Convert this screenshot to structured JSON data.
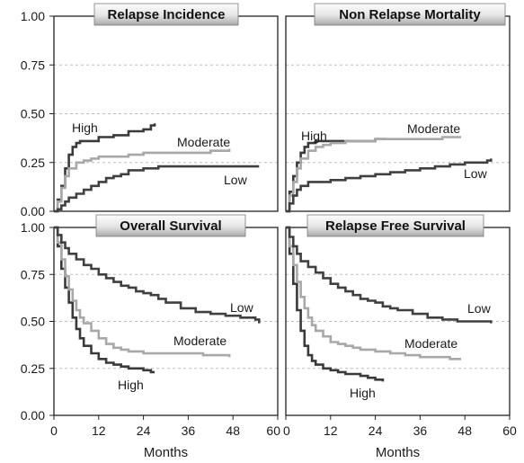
{
  "chart_data": [
    {
      "type": "line",
      "title": "Relapse Incidence",
      "xlabel": "",
      "ylabel": "",
      "xlim": [
        0,
        60
      ],
      "ylim": [
        0,
        1
      ],
      "xticks": [],
      "yticks": [
        "0.00",
        "0.25",
        "0.50",
        "0.75",
        "1.00"
      ],
      "grid": "horizontal dashed",
      "series": [
        {
          "name": "High",
          "color": "#3a3a3a",
          "x": [
            0,
            1,
            2,
            3,
            4,
            5,
            6,
            7,
            8,
            12,
            16,
            20,
            24,
            26,
            27
          ],
          "y": [
            0,
            0.06,
            0.13,
            0.22,
            0.29,
            0.33,
            0.35,
            0.36,
            0.36,
            0.38,
            0.39,
            0.41,
            0.42,
            0.44,
            0.45
          ]
        },
        {
          "name": "Moderate",
          "color": "#a8a8a8",
          "x": [
            0,
            1,
            2,
            3,
            4,
            6,
            8,
            10,
            12,
            16,
            20,
            24,
            30,
            36,
            42,
            47
          ],
          "y": [
            0,
            0.05,
            0.12,
            0.18,
            0.22,
            0.25,
            0.26,
            0.27,
            0.28,
            0.28,
            0.29,
            0.3,
            0.3,
            0.3,
            0.31,
            0.32
          ]
        },
        {
          "name": "Low",
          "color": "#404040",
          "x": [
            0,
            1,
            2,
            3,
            4,
            6,
            8,
            10,
            12,
            14,
            16,
            18,
            20,
            24,
            28,
            32,
            40,
            48,
            55
          ],
          "y": [
            0,
            0.01,
            0.03,
            0.05,
            0.07,
            0.09,
            0.11,
            0.13,
            0.15,
            0.17,
            0.18,
            0.19,
            0.21,
            0.22,
            0.23,
            0.23,
            0.23,
            0.23,
            0.23
          ]
        }
      ]
    },
    {
      "type": "line",
      "title": "Non Relapse Mortality",
      "xlabel": "",
      "ylabel": "",
      "xlim": [
        0,
        60
      ],
      "ylim": [
        0,
        1
      ],
      "xticks": [],
      "yticks": [],
      "grid": "horizontal dashed",
      "series": [
        {
          "name": "High",
          "color": "#3a3a3a",
          "x": [
            0,
            1,
            2,
            3,
            4,
            5,
            6,
            8,
            12,
            16,
            20,
            24,
            27
          ],
          "y": [
            0,
            0.1,
            0.18,
            0.25,
            0.3,
            0.33,
            0.35,
            0.36,
            0.36,
            0.36,
            0.36,
            0.37,
            0.37
          ]
        },
        {
          "name": "Moderate",
          "color": "#a8a8a8",
          "x": [
            0,
            1,
            2,
            3,
            4,
            6,
            8,
            10,
            12,
            16,
            20,
            24,
            30,
            36,
            42,
            47
          ],
          "y": [
            0,
            0.08,
            0.15,
            0.22,
            0.27,
            0.31,
            0.33,
            0.34,
            0.35,
            0.36,
            0.36,
            0.37,
            0.37,
            0.37,
            0.38,
            0.38
          ]
        },
        {
          "name": "Low",
          "color": "#404040",
          "x": [
            0,
            1,
            2,
            3,
            4,
            6,
            8,
            12,
            16,
            20,
            24,
            28,
            32,
            36,
            40,
            44,
            48,
            52,
            54,
            55
          ],
          "y": [
            0,
            0.04,
            0.08,
            0.11,
            0.13,
            0.15,
            0.15,
            0.16,
            0.17,
            0.18,
            0.19,
            0.2,
            0.21,
            0.22,
            0.23,
            0.24,
            0.25,
            0.25,
            0.26,
            0.27
          ]
        }
      ]
    },
    {
      "type": "line",
      "title": "Overall Survival",
      "xlabel": "Months",
      "ylabel": "",
      "xlim": [
        0,
        60
      ],
      "ylim": [
        0,
        1
      ],
      "xticks": [
        "0",
        "12",
        "24",
        "36",
        "48",
        "60"
      ],
      "yticks": [
        "0.00",
        "0.25",
        "0.50",
        "0.75",
        "1.00"
      ],
      "grid": "horizontal dashed",
      "series": [
        {
          "name": "High",
          "color": "#3a3a3a",
          "x": [
            0,
            1,
            2,
            3,
            4,
            5,
            6,
            7,
            8,
            10,
            12,
            14,
            16,
            18,
            20,
            22,
            24,
            26,
            27
          ],
          "y": [
            1,
            0.9,
            0.78,
            0.68,
            0.6,
            0.52,
            0.46,
            0.41,
            0.37,
            0.33,
            0.3,
            0.28,
            0.27,
            0.26,
            0.25,
            0.25,
            0.24,
            0.23,
            0.23
          ]
        },
        {
          "name": "Moderate",
          "color": "#a8a8a8",
          "x": [
            0,
            1,
            2,
            3,
            4,
            5,
            6,
            7,
            8,
            10,
            12,
            14,
            16,
            18,
            20,
            24,
            28,
            32,
            36,
            40,
            44,
            47
          ],
          "y": [
            1,
            0.92,
            0.83,
            0.74,
            0.67,
            0.61,
            0.56,
            0.52,
            0.49,
            0.45,
            0.41,
            0.38,
            0.36,
            0.35,
            0.34,
            0.33,
            0.33,
            0.33,
            0.33,
            0.32,
            0.32,
            0.31
          ]
        },
        {
          "name": "Low",
          "color": "#404040",
          "x": [
            0,
            1,
            2,
            3,
            4,
            6,
            8,
            10,
            12,
            14,
            16,
            18,
            20,
            22,
            24,
            26,
            28,
            30,
            34,
            38,
            42,
            46,
            50,
            54,
            55
          ],
          "y": [
            1,
            0.96,
            0.92,
            0.89,
            0.86,
            0.83,
            0.8,
            0.78,
            0.75,
            0.73,
            0.71,
            0.69,
            0.68,
            0.66,
            0.65,
            0.64,
            0.62,
            0.6,
            0.57,
            0.55,
            0.54,
            0.53,
            0.52,
            0.51,
            0.49
          ]
        }
      ]
    },
    {
      "type": "line",
      "title": "Relapse Free Survival",
      "xlabel": "Months",
      "ylabel": "",
      "xlim": [
        0,
        60
      ],
      "ylim": [
        0,
        1
      ],
      "xticks": [
        "0",
        "12",
        "24",
        "36",
        "48",
        "60"
      ],
      "yticks": [],
      "grid": "horizontal dashed",
      "series": [
        {
          "name": "High",
          "color": "#3a3a3a",
          "x": [
            0,
            1,
            2,
            3,
            4,
            5,
            6,
            7,
            8,
            10,
            12,
            14,
            16,
            18,
            20,
            22,
            24,
            26
          ],
          "y": [
            1,
            0.86,
            0.7,
            0.56,
            0.45,
            0.37,
            0.32,
            0.29,
            0.27,
            0.25,
            0.24,
            0.23,
            0.22,
            0.22,
            0.21,
            0.2,
            0.19,
            0.18
          ]
        },
        {
          "name": "Moderate",
          "color": "#a8a8a8",
          "x": [
            0,
            1,
            2,
            3,
            4,
            5,
            6,
            7,
            8,
            10,
            12,
            14,
            16,
            18,
            20,
            24,
            28,
            32,
            36,
            40,
            44,
            47
          ],
          "y": [
            1,
            0.9,
            0.8,
            0.71,
            0.63,
            0.57,
            0.52,
            0.48,
            0.45,
            0.42,
            0.39,
            0.38,
            0.37,
            0.36,
            0.35,
            0.34,
            0.33,
            0.32,
            0.31,
            0.31,
            0.3,
            0.3
          ]
        },
        {
          "name": "Low",
          "color": "#404040",
          "x": [
            0,
            1,
            2,
            3,
            4,
            6,
            8,
            10,
            12,
            14,
            16,
            18,
            20,
            22,
            24,
            26,
            28,
            30,
            34,
            38,
            42,
            46,
            50,
            54,
            55
          ],
          "y": [
            1,
            0.95,
            0.9,
            0.86,
            0.82,
            0.79,
            0.76,
            0.73,
            0.7,
            0.68,
            0.66,
            0.64,
            0.62,
            0.61,
            0.6,
            0.58,
            0.57,
            0.56,
            0.54,
            0.52,
            0.51,
            0.5,
            0.5,
            0.5,
            0.49
          ]
        }
      ]
    }
  ]
}
